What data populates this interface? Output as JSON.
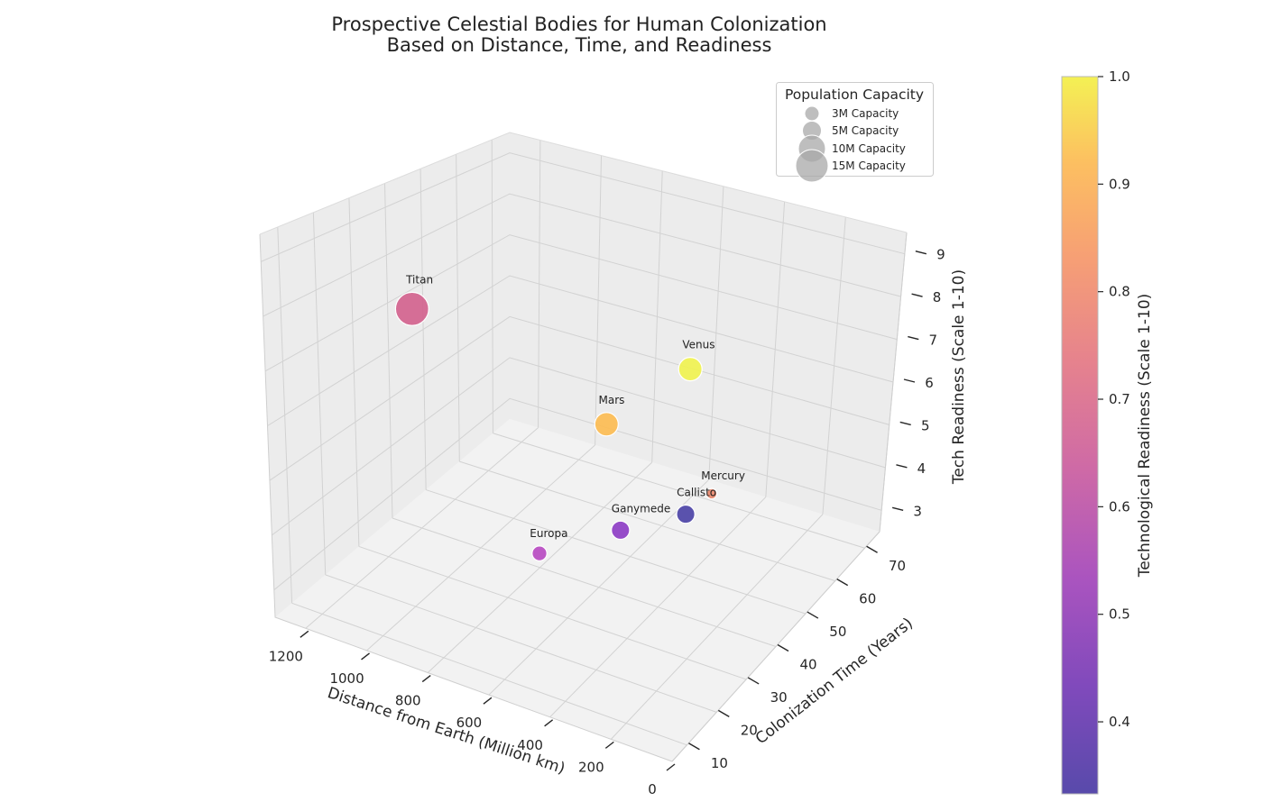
{
  "chart_data": {
    "type": "scatter",
    "projection": "3d",
    "title_lines": [
      "Prospective Celestial Bodies for Human Colonization",
      "Based on Distance, Time, and Readiness"
    ],
    "xlabel": "Distance from Earth (Million km)",
    "ylabel": "Colonization Time (Years)",
    "zlabel": "Tech Readiness (Scale 1-10)",
    "x_ticks": [
      "0",
      "200",
      "400",
      "600",
      "800",
      "1000",
      "1200"
    ],
    "y_ticks": [
      "10",
      "20",
      "30",
      "40",
      "50",
      "60",
      "70"
    ],
    "z_ticks": [
      "3",
      "4",
      "5",
      "6",
      "7",
      "8",
      "9"
    ],
    "xlim": [
      0,
      1300
    ],
    "ylim": [
      5,
      75
    ],
    "zlim": [
      2.5,
      9.5
    ],
    "grid": true,
    "points": [
      {
        "name": "Mars",
        "distance": 225,
        "time": 10,
        "readiness": 8,
        "population_millions": 5,
        "color": "#fcbc53"
      },
      {
        "name": "Venus",
        "distance": 40,
        "time": 20,
        "readiness": 9,
        "population_millions": 5,
        "color": "#f0f250"
      },
      {
        "name": "Mercury",
        "distance": 90,
        "time": 30,
        "readiness": 6,
        "population_millions": 1,
        "color": "#eb8a6f"
      },
      {
        "name": "Europa",
        "distance": 630,
        "time": 25,
        "readiness": 4,
        "population_millions": 2,
        "color": "#b94cc2"
      },
      {
        "name": "Titan",
        "distance": 1200,
        "time": 40,
        "readiness": 7,
        "population_millions": 10,
        "color": "#d3638e"
      },
      {
        "name": "Ganymede",
        "distance": 630,
        "time": 50,
        "readiness": 3,
        "population_millions": 3,
        "color": "#8e3ec6"
      },
      {
        "name": "Callisto",
        "distance": 630,
        "time": 70,
        "readiness": 2,
        "population_millions": 3,
        "color": "#4d44a7"
      }
    ],
    "size_legend": {
      "title": "Population Capacity",
      "entries": [
        {
          "label": "3M Capacity",
          "value": 3
        },
        {
          "label": "5M Capacity",
          "value": 5
        },
        {
          "label": "10M Capacity",
          "value": 10
        },
        {
          "label": "15M Capacity",
          "value": 15
        }
      ],
      "placement": "top-right"
    },
    "colorbar": {
      "label": "Technological Readiness (Scale 1-10)",
      "ticks": [
        "0.4",
        "0.5",
        "0.6",
        "0.7",
        "0.8",
        "0.9",
        "1.0"
      ],
      "range": [
        0.333,
        1.0
      ],
      "colormap": "plasma"
    }
  }
}
